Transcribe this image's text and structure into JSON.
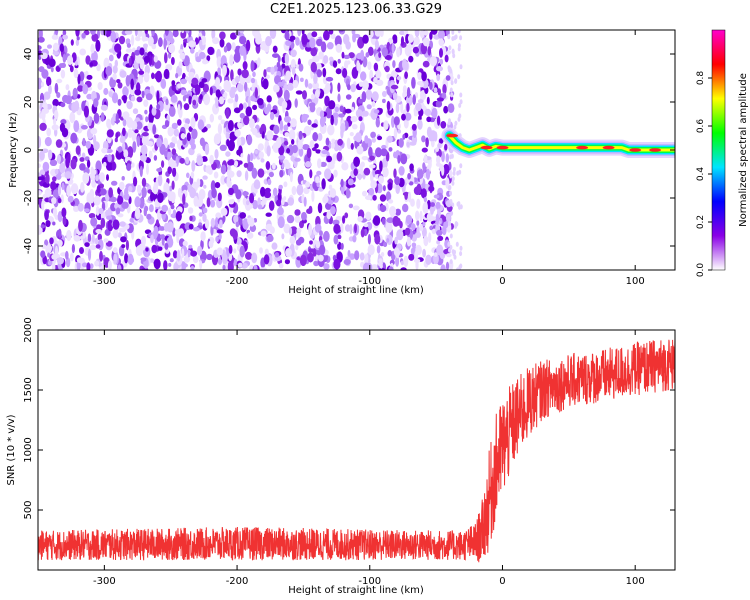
{
  "title": "C2E1.2025.123.06.33.G29",
  "chart_data": [
    {
      "type": "heatmap",
      "xlabel": "Height of straight line (km)",
      "ylabel": "Frequency (Hz)",
      "xlim": [
        -350,
        130
      ],
      "ylim": [
        -50,
        50
      ],
      "x_ticks": [
        -300,
        -200,
        -100,
        0,
        100
      ],
      "y_ticks": [
        -40,
        -20,
        0,
        20,
        40
      ],
      "noise_region_x": [
        -350,
        -38
      ],
      "tone_track": [
        {
          "x": -40,
          "y": 6
        },
        {
          "x": -35,
          "y": 3
        },
        {
          "x": -30,
          "y": 1
        },
        {
          "x": -25,
          "y": 0
        },
        {
          "x": -20,
          "y": 1
        },
        {
          "x": -15,
          "y": 2
        },
        {
          "x": -10,
          "y": 0.5
        },
        {
          "x": -5,
          "y": 1.5
        },
        {
          "x": 0,
          "y": 1
        },
        {
          "x": 20,
          "y": 1
        },
        {
          "x": 40,
          "y": 1
        },
        {
          "x": 60,
          "y": 1
        },
        {
          "x": 80,
          "y": 1
        },
        {
          "x": 90,
          "y": 1
        },
        {
          "x": 95,
          "y": 0
        },
        {
          "x": 110,
          "y": 0
        },
        {
          "x": 120,
          "y": 0
        },
        {
          "x": 130,
          "y": 0
        }
      ],
      "colorbar": {
        "label": "Normalized spectral amplitude",
        "ticks": [
          0.0,
          0.2,
          0.4,
          0.6,
          0.8
        ],
        "range": [
          0,
          1
        ],
        "colors": [
          "#ffffff",
          "#8a00e6",
          "#0000ff",
          "#00e5ff",
          "#00ff00",
          "#ffff00",
          "#ff0000",
          "#ff00cc"
        ]
      }
    },
    {
      "type": "line",
      "xlabel": "Height of straight line (km)",
      "ylabel": "SNR (10 * v/v)",
      "xlim": [
        -350,
        130
      ],
      "ylim": [
        0,
        2000
      ],
      "x_ticks": [
        -300,
        -200,
        -100,
        0,
        100
      ],
      "y_ticks": [
        500,
        1000,
        1500,
        2000
      ],
      "color": "#f03232",
      "envelope": [
        {
          "x": -350,
          "low": 80,
          "high": 330
        },
        {
          "x": -300,
          "low": 80,
          "high": 340
        },
        {
          "x": -200,
          "low": 80,
          "high": 360
        },
        {
          "x": -100,
          "low": 80,
          "high": 340
        },
        {
          "x": -30,
          "low": 80,
          "high": 330
        },
        {
          "x": -20,
          "low": 60,
          "high": 400
        },
        {
          "x": -15,
          "low": 60,
          "high": 600
        },
        {
          "x": -10,
          "low": 150,
          "high": 1000
        },
        {
          "x": -5,
          "low": 400,
          "high": 1300
        },
        {
          "x": 0,
          "low": 600,
          "high": 1450
        },
        {
          "x": 10,
          "low": 900,
          "high": 1600
        },
        {
          "x": 20,
          "low": 1100,
          "high": 1700
        },
        {
          "x": 30,
          "low": 1250,
          "high": 1750
        },
        {
          "x": 50,
          "low": 1350,
          "high": 1800
        },
        {
          "x": 80,
          "low": 1400,
          "high": 1850
        },
        {
          "x": 100,
          "low": 1450,
          "high": 1900
        },
        {
          "x": 130,
          "low": 1500,
          "high": 1950
        }
      ]
    }
  ]
}
